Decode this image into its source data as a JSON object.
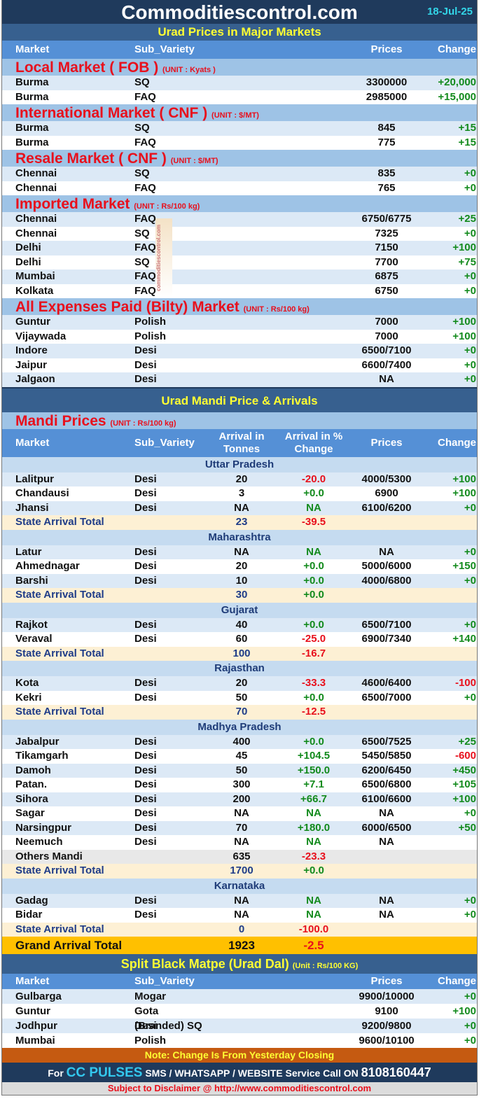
{
  "header": {
    "title": "Commoditiescontrol.com",
    "date": "18-Jul-25",
    "subtitle": "Urad Prices in Major Markets"
  },
  "colors": {
    "positive": "#128a1c",
    "negative": "#e8101c",
    "accent": "#ffff33",
    "header_bg": "#1f3a5c"
  },
  "cols": {
    "market": "Market",
    "sub_variety": "Sub_Variety",
    "prices": "Prices",
    "change": "Change",
    "arrival": "Arrival in Tonnes",
    "arrival_pct": "Arrival  in % Change"
  },
  "watermark": "commoditiescontrol.com",
  "markets": [
    {
      "title": "Local Market ( FOB )",
      "unit": "(UNIT : Kyats )",
      "rows": [
        [
          "Burma",
          "SQ",
          "3300000",
          "+20,000"
        ],
        [
          "Burma",
          "FAQ",
          "2985000",
          "+15,000"
        ]
      ]
    },
    {
      "title": "International Market ( CNF )",
      "unit": "(UNIT : $/MT)",
      "rows": [
        [
          "Burma",
          "SQ",
          "845",
          "+15"
        ],
        [
          "Burma",
          "FAQ",
          "775",
          "+15"
        ]
      ]
    },
    {
      "title": "Resale Market  ( CNF )",
      "unit": "(UNIT : $/MT)",
      "rows": [
        [
          "Chennai",
          "SQ",
          "835",
          "+0"
        ],
        [
          "Chennai",
          "FAQ",
          "765",
          "+0"
        ]
      ]
    },
    {
      "title": "Imported Market",
      "unit": "(UNIT : Rs/100 kg)",
      "rows": [
        [
          "Chennai",
          "FAQ",
          "6750/6775",
          "+25"
        ],
        [
          "Chennai",
          "SQ",
          "7325",
          "+0"
        ],
        [
          "Delhi",
          "FAQ",
          "7150",
          "+100"
        ],
        [
          "Delhi",
          "SQ",
          "7700",
          "+75"
        ],
        [
          "Mumbai",
          "FAQ",
          "6875",
          "+0"
        ],
        [
          "Kolkata",
          "FAQ",
          "6750",
          "+0"
        ]
      ]
    },
    {
      "title": "All Expenses Paid (Bilty) Market",
      "unit": "(UNIT : Rs/100 kg)",
      "rows": [
        [
          "Guntur",
          "Polish",
          "7000",
          "+100"
        ],
        [
          "Vijaywada",
          "Polish",
          "7000",
          "+100"
        ],
        [
          "Indore",
          "Desi",
          "6500/7100",
          "+0"
        ],
        [
          "Jaipur",
          "Desi",
          "6600/7400",
          "+0"
        ],
        [
          "Jalgaon",
          "Desi",
          "NA",
          "+0"
        ]
      ]
    }
  ],
  "mandi": {
    "band": "Urad Mandi Price & Arrivals",
    "title": "Mandi Prices",
    "unit": "(UNIT : Rs/100 kg)",
    "states": [
      {
        "name": "Uttar Pradesh",
        "rows": [
          [
            "Lalitpur",
            "Desi",
            "20",
            "-20.0",
            "4000/5300",
            "+100"
          ],
          [
            "Chandausi",
            "Desi",
            "3",
            "+0.0",
            "6900",
            "+100"
          ],
          [
            "Jhansi",
            "Desi",
            "NA",
            "NA",
            "6100/6200",
            "+0"
          ]
        ],
        "total": [
          "State Arrival Total",
          "",
          "23",
          "-39.5",
          "",
          ""
        ]
      },
      {
        "name": "Maharashtra",
        "rows": [
          [
            "Latur",
            "Desi",
            "NA",
            "NA",
            "NA",
            "+0"
          ],
          [
            "Ahmednagar",
            "Desi",
            "20",
            "+0.0",
            "5000/6000",
            "+150"
          ],
          [
            "Barshi",
            "Desi",
            "10",
            "+0.0",
            "4000/6800",
            "+0"
          ]
        ],
        "total": [
          "State Arrival Total",
          "",
          "30",
          "+0.0",
          "",
          ""
        ]
      },
      {
        "name": "Gujarat",
        "rows": [
          [
            "Rajkot",
            "Desi",
            "40",
            "+0.0",
            "6500/7100",
            "+0"
          ],
          [
            "Veraval",
            "Desi",
            "60",
            "-25.0",
            "6900/7340",
            "+140"
          ]
        ],
        "total": [
          "State Arrival Total",
          "",
          "100",
          "-16.7",
          "",
          ""
        ]
      },
      {
        "name": "Rajasthan",
        "rows": [
          [
            "Kota",
            "Desi",
            "20",
            "-33.3",
            "4600/6400",
            "-100"
          ],
          [
            "Kekri",
            "Desi",
            "50",
            "+0.0",
            "6500/7000",
            "+0"
          ]
        ],
        "total": [
          "State Arrival Total",
          "",
          "70",
          "-12.5",
          "",
          ""
        ]
      },
      {
        "name": "Madhya Pradesh",
        "rows": [
          [
            "Jabalpur",
            "Desi",
            "400",
            "+0.0",
            "6500/7525",
            "+25"
          ],
          [
            "Tikamgarh",
            "Desi",
            "45",
            "+104.5",
            "5450/5850",
            "-600"
          ],
          [
            "Damoh",
            "Desi",
            "50",
            "+150.0",
            "6200/6450",
            "+450"
          ],
          [
            "Patan.",
            "Desi",
            "300",
            "+7.1",
            "6500/6800",
            "+105"
          ],
          [
            "Sihora",
            "Desi",
            "200",
            "+66.7",
            "6100/6600",
            "+100"
          ],
          [
            "Sagar",
            "Desi",
            "NA",
            "NA",
            "NA",
            "+0"
          ],
          [
            "Narsingpur",
            "Desi",
            "70",
            "+180.0",
            "6000/6500",
            "+50"
          ],
          [
            "Neemuch",
            "Desi",
            "NA",
            "NA",
            "NA",
            ""
          ]
        ],
        "others": [
          "Others Mandi",
          "",
          "635",
          "-23.3",
          "",
          ""
        ],
        "total": [
          "State Arrival Total",
          "",
          "1700",
          "+0.0",
          "",
          ""
        ]
      },
      {
        "name": "Karnataka",
        "rows": [
          [
            "Gadag",
            "Desi",
            "NA",
            "NA",
            "NA",
            "+0"
          ],
          [
            "Bidar",
            "Desi",
            "NA",
            "NA",
            "NA",
            "+0"
          ]
        ],
        "total": [
          "State Arrival Total",
          "",
          "0",
          "-100.0",
          "",
          ""
        ]
      }
    ],
    "grand": [
      "Grand Arrival Total",
      "",
      "1923",
      "-2.5",
      "",
      ""
    ]
  },
  "dal": {
    "title": "Split Black Matpe (Urad Dal)",
    "unit": "(Unit : Rs/100 KG)",
    "rows": [
      [
        "Gulbarga",
        "Mogar",
        "9900/10000",
        "+0"
      ],
      [
        "Guntur",
        "Gota (Branded) SQ",
        "9100",
        "+100"
      ],
      [
        "Jodhpur",
        "Desi",
        "9200/9800",
        "+0"
      ],
      [
        "Mumbai",
        "Polish",
        "9600/10100",
        "+0"
      ]
    ]
  },
  "footer": {
    "note": "Note: Change Is From Yesterday Closing",
    "cc_for": "For",
    "cc_brand": "CC PULSES",
    "cc_text": "SMS / WHATSAPP / WEBSITE Service Call  ON",
    "cc_phone": "8108160447",
    "disclaimer": "Subject to Disclaimer @  http://www.commoditiescontrol.com"
  }
}
